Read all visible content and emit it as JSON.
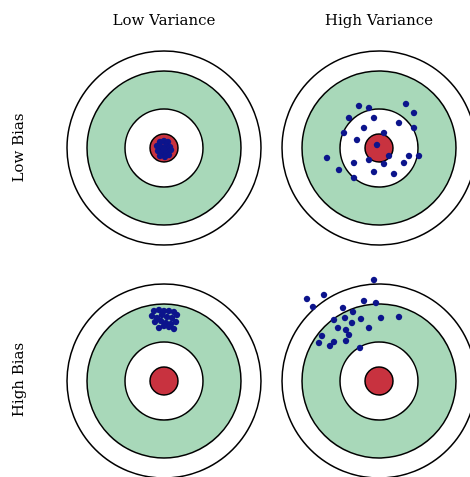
{
  "column_labels": [
    "Low Variance",
    "High Variance"
  ],
  "row_labels": [
    "Low Bias",
    "High Bias"
  ],
  "colors": {
    "outer_ring": "#ffffff",
    "middle_ring": "#a8d8b9",
    "inner_ring": "#ffffff",
    "bullseye": "#c8323f",
    "shots": "#0c148c",
    "stroke": "#000000"
  },
  "targets": [
    {
      "name": "low-bias-low-variance",
      "shots": [
        [
          -4,
          -6
        ],
        [
          0,
          -7
        ],
        [
          4,
          -6
        ],
        [
          -7,
          -2
        ],
        [
          -3,
          -1
        ],
        [
          2,
          -2
        ],
        [
          6,
          -1
        ],
        [
          -6,
          3
        ],
        [
          -2,
          4
        ],
        [
          3,
          4
        ],
        [
          7,
          2
        ],
        [
          -4,
          8
        ],
        [
          1,
          9
        ],
        [
          5,
          7
        ],
        [
          0,
          1
        ]
      ]
    },
    {
      "name": "low-bias-high-variance",
      "shots": [
        [
          -20,
          -42
        ],
        [
          -10,
          -40
        ],
        [
          27,
          -44
        ],
        [
          35,
          -35
        ],
        [
          -30,
          -30
        ],
        [
          -5,
          -30
        ],
        [
          20,
          -25
        ],
        [
          -35,
          -15
        ],
        [
          -15,
          -20
        ],
        [
          5,
          -15
        ],
        [
          35,
          -20
        ],
        [
          -22,
          -8
        ],
        [
          -2,
          -3
        ],
        [
          10,
          8
        ],
        [
          30,
          8
        ],
        [
          40,
          8
        ],
        [
          -52,
          10
        ],
        [
          -25,
          15
        ],
        [
          -10,
          12
        ],
        [
          5,
          16
        ],
        [
          25,
          15
        ],
        [
          -40,
          22
        ],
        [
          -5,
          24
        ],
        [
          15,
          26
        ],
        [
          -25,
          30
        ]
      ]
    },
    {
      "name": "high-bias-low-variance",
      "shots": [
        [
          -10,
          -70
        ],
        [
          -5,
          -71
        ],
        [
          0,
          -70
        ],
        [
          5,
          -70
        ],
        [
          10,
          -69
        ],
        [
          -12,
          -65
        ],
        [
          -7,
          -63
        ],
        [
          -2,
          -66
        ],
        [
          3,
          -64
        ],
        [
          8,
          -63
        ],
        [
          13,
          -66
        ],
        [
          -9,
          -59
        ],
        [
          -3,
          -60
        ],
        [
          2,
          -58
        ],
        [
          7,
          -57
        ],
        [
          12,
          -59
        ],
        [
          -5,
          -53
        ],
        [
          0,
          -55
        ],
        [
          5,
          -54
        ],
        [
          10,
          -52
        ]
      ]
    },
    {
      "name": "high-bias-high-variance",
      "shots": [
        [
          -5,
          -101
        ],
        [
          -55,
          -86
        ],
        [
          -72,
          -82
        ],
        [
          -66,
          -74
        ],
        [
          -3,
          -78
        ],
        [
          -36,
          -73
        ],
        [
          -26,
          -69
        ],
        [
          -45,
          -61
        ],
        [
          -34,
          -63
        ],
        [
          -18,
          -62
        ],
        [
          2,
          -63
        ],
        [
          20,
          -64
        ],
        [
          -27,
          -58
        ],
        [
          -41,
          -53
        ],
        [
          -10,
          -53
        ],
        [
          -33,
          -51
        ],
        [
          -57,
          -45
        ],
        [
          -30,
          -46
        ],
        [
          -60,
          -38
        ],
        [
          -45,
          -39
        ],
        [
          -49,
          -35
        ],
        [
          -19,
          -33
        ],
        [
          -33,
          -40
        ],
        [
          -15,
          -80
        ]
      ]
    }
  ]
}
